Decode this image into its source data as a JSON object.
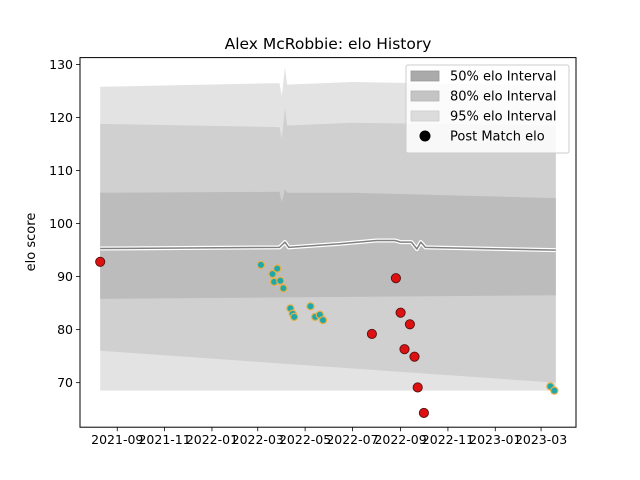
{
  "chart_data": {
    "type": "line",
    "title": "Alex McRobbie: elo History",
    "xlabel": "",
    "ylabel": "elo score",
    "xlim": [
      "2021-07-15",
      "2023-04-15"
    ],
    "ylim": [
      61.6,
      131.3
    ],
    "x_ticks": [
      "2021-09",
      "2021-11",
      "2022-01",
      "2022-03",
      "2022-05",
      "2022-07",
      "2022-09",
      "2022-11",
      "2023-01",
      "2023-03"
    ],
    "y_ticks": [
      70,
      80,
      90,
      100,
      110,
      120,
      130
    ],
    "legend": {
      "placement": "top-right",
      "entries": [
        "50% elo Interval",
        "80% elo Interval",
        "95% elo Interval",
        "Post Match elo"
      ]
    },
    "bands": [
      {
        "name": "95% elo Interval",
        "color": "#e3e3e3",
        "upper": [
          [
            "2021-08-10",
            125.8
          ],
          [
            "2022-03-29",
            126.5
          ],
          [
            "2022-04-01",
            124.0
          ],
          [
            "2022-04-05",
            129.5
          ],
          [
            "2022-04-08",
            126.2
          ],
          [
            "2022-07-01",
            126.7
          ],
          [
            "2023-03-20",
            126.0
          ]
        ],
        "lower": [
          [
            "2021-08-10",
            68.5
          ],
          [
            "2023-03-20",
            68.5
          ]
        ]
      },
      {
        "name": "80% elo Interval",
        "color": "#d0d0d0",
        "upper": [
          [
            "2021-08-10",
            118.8
          ],
          [
            "2022-03-29",
            118.2
          ],
          [
            "2022-04-01",
            116.0
          ],
          [
            "2022-04-05",
            121.8
          ],
          [
            "2022-04-08",
            118.5
          ],
          [
            "2022-07-01",
            119.0
          ],
          [
            "2023-03-20",
            118.5
          ]
        ],
        "lower": [
          [
            "2021-08-10",
            76.0
          ],
          [
            "2023-03-20",
            70.0
          ]
        ]
      },
      {
        "name": "50% elo Interval",
        "color": "#bcbcbc",
        "upper": [
          [
            "2021-08-10",
            105.8
          ],
          [
            "2022-03-29",
            106.0
          ],
          [
            "2022-04-01",
            104.0
          ],
          [
            "2022-04-05",
            106.5
          ],
          [
            "2022-04-08",
            105.8
          ],
          [
            "2022-07-01",
            105.8
          ],
          [
            "2023-03-20",
            104.8
          ]
        ],
        "lower": [
          [
            "2021-08-10",
            85.8
          ],
          [
            "2023-03-20",
            86.5
          ]
        ]
      }
    ],
    "series": [
      {
        "color": "#808080",
        "points": [
          [
            "2021-08-10",
            95.3
          ],
          [
            "2022-03-29",
            95.5
          ],
          [
            "2022-04-05",
            96.5
          ],
          [
            "2022-04-10",
            95.5
          ],
          [
            "2022-06-15",
            96.2
          ],
          [
            "2022-08-01",
            96.8
          ],
          [
            "2022-08-25",
            96.8
          ],
          [
            "2022-09-01",
            96.5
          ],
          [
            "2022-09-15",
            96.5
          ],
          [
            "2022-09-22",
            95.2
          ],
          [
            "2022-09-27",
            96.5
          ],
          [
            "2022-10-03",
            95.5
          ],
          [
            "2023-03-20",
            95.0
          ]
        ]
      }
    ],
    "scatter": [
      {
        "date": "2021-08-10",
        "value": 92.8,
        "result": "loss"
      },
      {
        "date": "2022-03-05",
        "value": 92.2,
        "result": "win"
      },
      {
        "date": "2022-03-20",
        "value": 90.5,
        "result": "win"
      },
      {
        "date": "2022-03-22",
        "value": 89.0,
        "result": "win"
      },
      {
        "date": "2022-03-26",
        "value": 91.5,
        "result": "win"
      },
      {
        "date": "2022-03-30",
        "value": 89.2,
        "result": "win"
      },
      {
        "date": "2022-04-03",
        "value": 87.8,
        "result": "win"
      },
      {
        "date": "2022-04-12",
        "value": 84.0,
        "result": "win"
      },
      {
        "date": "2022-04-15",
        "value": 83.0,
        "result": "win"
      },
      {
        "date": "2022-04-17",
        "value": 82.4,
        "result": "win"
      },
      {
        "date": "2022-05-08",
        "value": 84.4,
        "result": "win"
      },
      {
        "date": "2022-05-14",
        "value": 82.4,
        "result": "win"
      },
      {
        "date": "2022-05-20",
        "value": 82.8,
        "result": "win"
      },
      {
        "date": "2022-05-24",
        "value": 81.8,
        "result": "win"
      },
      {
        "date": "2022-07-26",
        "value": 79.2,
        "result": "loss"
      },
      {
        "date": "2022-08-26",
        "value": 89.7,
        "result": "loss"
      },
      {
        "date": "2022-09-01",
        "value": 83.2,
        "result": "loss"
      },
      {
        "date": "2022-09-06",
        "value": 76.3,
        "result": "loss"
      },
      {
        "date": "2022-09-13",
        "value": 81.0,
        "result": "loss"
      },
      {
        "date": "2022-09-19",
        "value": 74.9,
        "result": "loss"
      },
      {
        "date": "2022-09-23",
        "value": 69.1,
        "result": "loss"
      },
      {
        "date": "2022-10-01",
        "value": 64.3,
        "result": "loss"
      },
      {
        "date": "2023-03-13",
        "value": 69.3,
        "result": "win"
      },
      {
        "date": "2023-03-18",
        "value": 68.5,
        "result": "win"
      }
    ],
    "colors": {
      "win_fill": "#20a8a8",
      "win_edge": "#e8b04a",
      "loss_fill": "#dd1111",
      "loss_edge": "#551111",
      "avg_line": "#808080",
      "avg_halo": "#ffffff"
    }
  }
}
